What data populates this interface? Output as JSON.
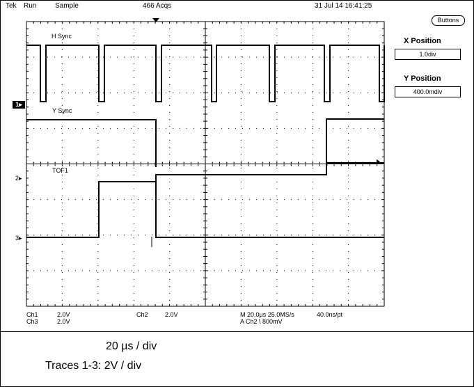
{
  "status_bar": {
    "brand": "Tek",
    "run_state": "Run",
    "mode": "Sample",
    "acquisitions": "466 Acqs",
    "datetime": "31 Jul 14 16:41:25"
  },
  "side_menu": {
    "buttons_label": "Buttons",
    "x_position_label": "X Position",
    "x_position_value": "1.0div",
    "y_position_label": "Y Position",
    "y_position_value": "400.0mdiv"
  },
  "traces": {
    "t1_label": "H Sync",
    "t2_label": "Y Sync",
    "t3_label": "TOF1",
    "marker_1": "1",
    "marker_2": "2",
    "marker_3": "3"
  },
  "readout": {
    "ch1_name": "Ch1",
    "ch1_scale": "2.0V",
    "ch3_name": "Ch3",
    "ch3_scale": "2.0V",
    "ch2_name": "Ch2",
    "ch2_scale": "2.0V",
    "timebase": "M 20.0µs 25.0MS/s",
    "resolution": "40.0ns/pt",
    "trigger": "A  Ch2  \\  800mV"
  },
  "caption": {
    "line1": "20 µs / div",
    "line2": "Traces 1-3: 2V / div"
  },
  "colors": {
    "trace": "#000000",
    "grid": "#000000",
    "background": "#ffffff"
  },
  "icons": [
    "trigger-position-icon",
    "trigger-level-icon",
    "channel-ground-marker"
  ]
}
